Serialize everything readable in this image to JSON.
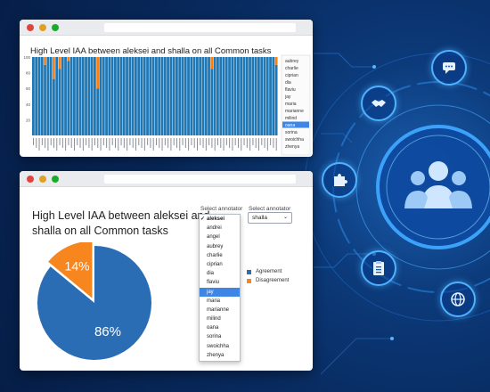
{
  "top_window": {
    "title": "High Level IAA between aleksei and shalla on all Common tasks",
    "colors": {
      "agreement": "#1f77b4",
      "disagreement": "#ff7f0e"
    },
    "y_ticks": [
      "100",
      "80",
      "60",
      "40",
      "20"
    ],
    "legend_names": [
      "aubrey",
      "charlie",
      "ciprian",
      "dia",
      "flaviu",
      "jay",
      "maria",
      "marianne",
      "milind",
      "oana",
      "sorina",
      "swoichha",
      "zhenya"
    ],
    "highlighted_name": "oana"
  },
  "bottom_window": {
    "title": "High Level IAA between aleksei and shalla on all Common tasks",
    "select_label_1": "Select annotator",
    "select_label_2": "Select annotator",
    "select_value_2": "shalla",
    "dropdown_options": [
      "aleksei",
      "andrei",
      "angel",
      "aubrey",
      "charlie",
      "ciprian",
      "dia",
      "flaviu",
      "jay",
      "maria",
      "marianne",
      "milind",
      "oana",
      "sorina",
      "swoichha",
      "zhenya"
    ],
    "dropdown_selected": "aleksei",
    "dropdown_highlighted": "jay",
    "legend": [
      {
        "label": "Agreement",
        "color": "#2a6db5"
      },
      {
        "label": "Disagreement",
        "color": "#f7861f"
      }
    ]
  },
  "chart_data": [
    {
      "type": "bar",
      "title": "High Level IAA between aleksei and shalla on all Common tasks",
      "ylim": [
        0,
        100
      ],
      "series": [
        {
          "name": "agreement",
          "values": [
            100,
            100,
            100,
            100,
            90,
            100,
            100,
            72,
            100,
            85,
            100,
            100,
            95,
            100,
            100,
            100,
            100,
            100,
            100,
            100,
            100,
            100,
            60,
            100,
            100,
            100,
            100,
            100,
            100,
            100,
            100,
            100,
            100,
            100,
            100,
            100,
            100,
            100,
            100,
            100,
            100,
            100,
            100,
            100,
            100,
            100,
            100,
            100,
            100,
            100,
            100,
            100,
            100,
            100,
            100,
            100,
            100,
            100,
            100,
            100,
            100,
            85,
            100,
            100,
            100,
            100,
            100,
            100,
            100,
            100,
            100,
            100,
            100,
            100,
            100,
            100,
            100,
            100,
            100,
            100,
            100,
            100,
            100,
            90
          ]
        },
        {
          "name": "disagreement",
          "values": [
            0,
            0,
            0,
            0,
            10,
            0,
            0,
            28,
            0,
            15,
            0,
            0,
            5,
            0,
            0,
            0,
            0,
            0,
            0,
            0,
            0,
            0,
            40,
            0,
            0,
            0,
            0,
            0,
            0,
            0,
            0,
            0,
            0,
            0,
            0,
            0,
            0,
            0,
            0,
            0,
            0,
            0,
            0,
            0,
            0,
            0,
            0,
            0,
            0,
            0,
            0,
            0,
            0,
            0,
            0,
            0,
            0,
            0,
            0,
            0,
            0,
            15,
            0,
            0,
            0,
            0,
            0,
            0,
            0,
            0,
            0,
            0,
            0,
            0,
            0,
            0,
            0,
            0,
            0,
            0,
            0,
            0,
            0,
            10
          ]
        }
      ]
    },
    {
      "type": "pie",
      "title": "High Level IAA between aleksei and shalla on all Common tasks",
      "labels": [
        "Agreement",
        "Disagreement"
      ],
      "values": [
        86,
        14
      ],
      "value_labels": [
        "86%",
        "14%"
      ]
    }
  ]
}
